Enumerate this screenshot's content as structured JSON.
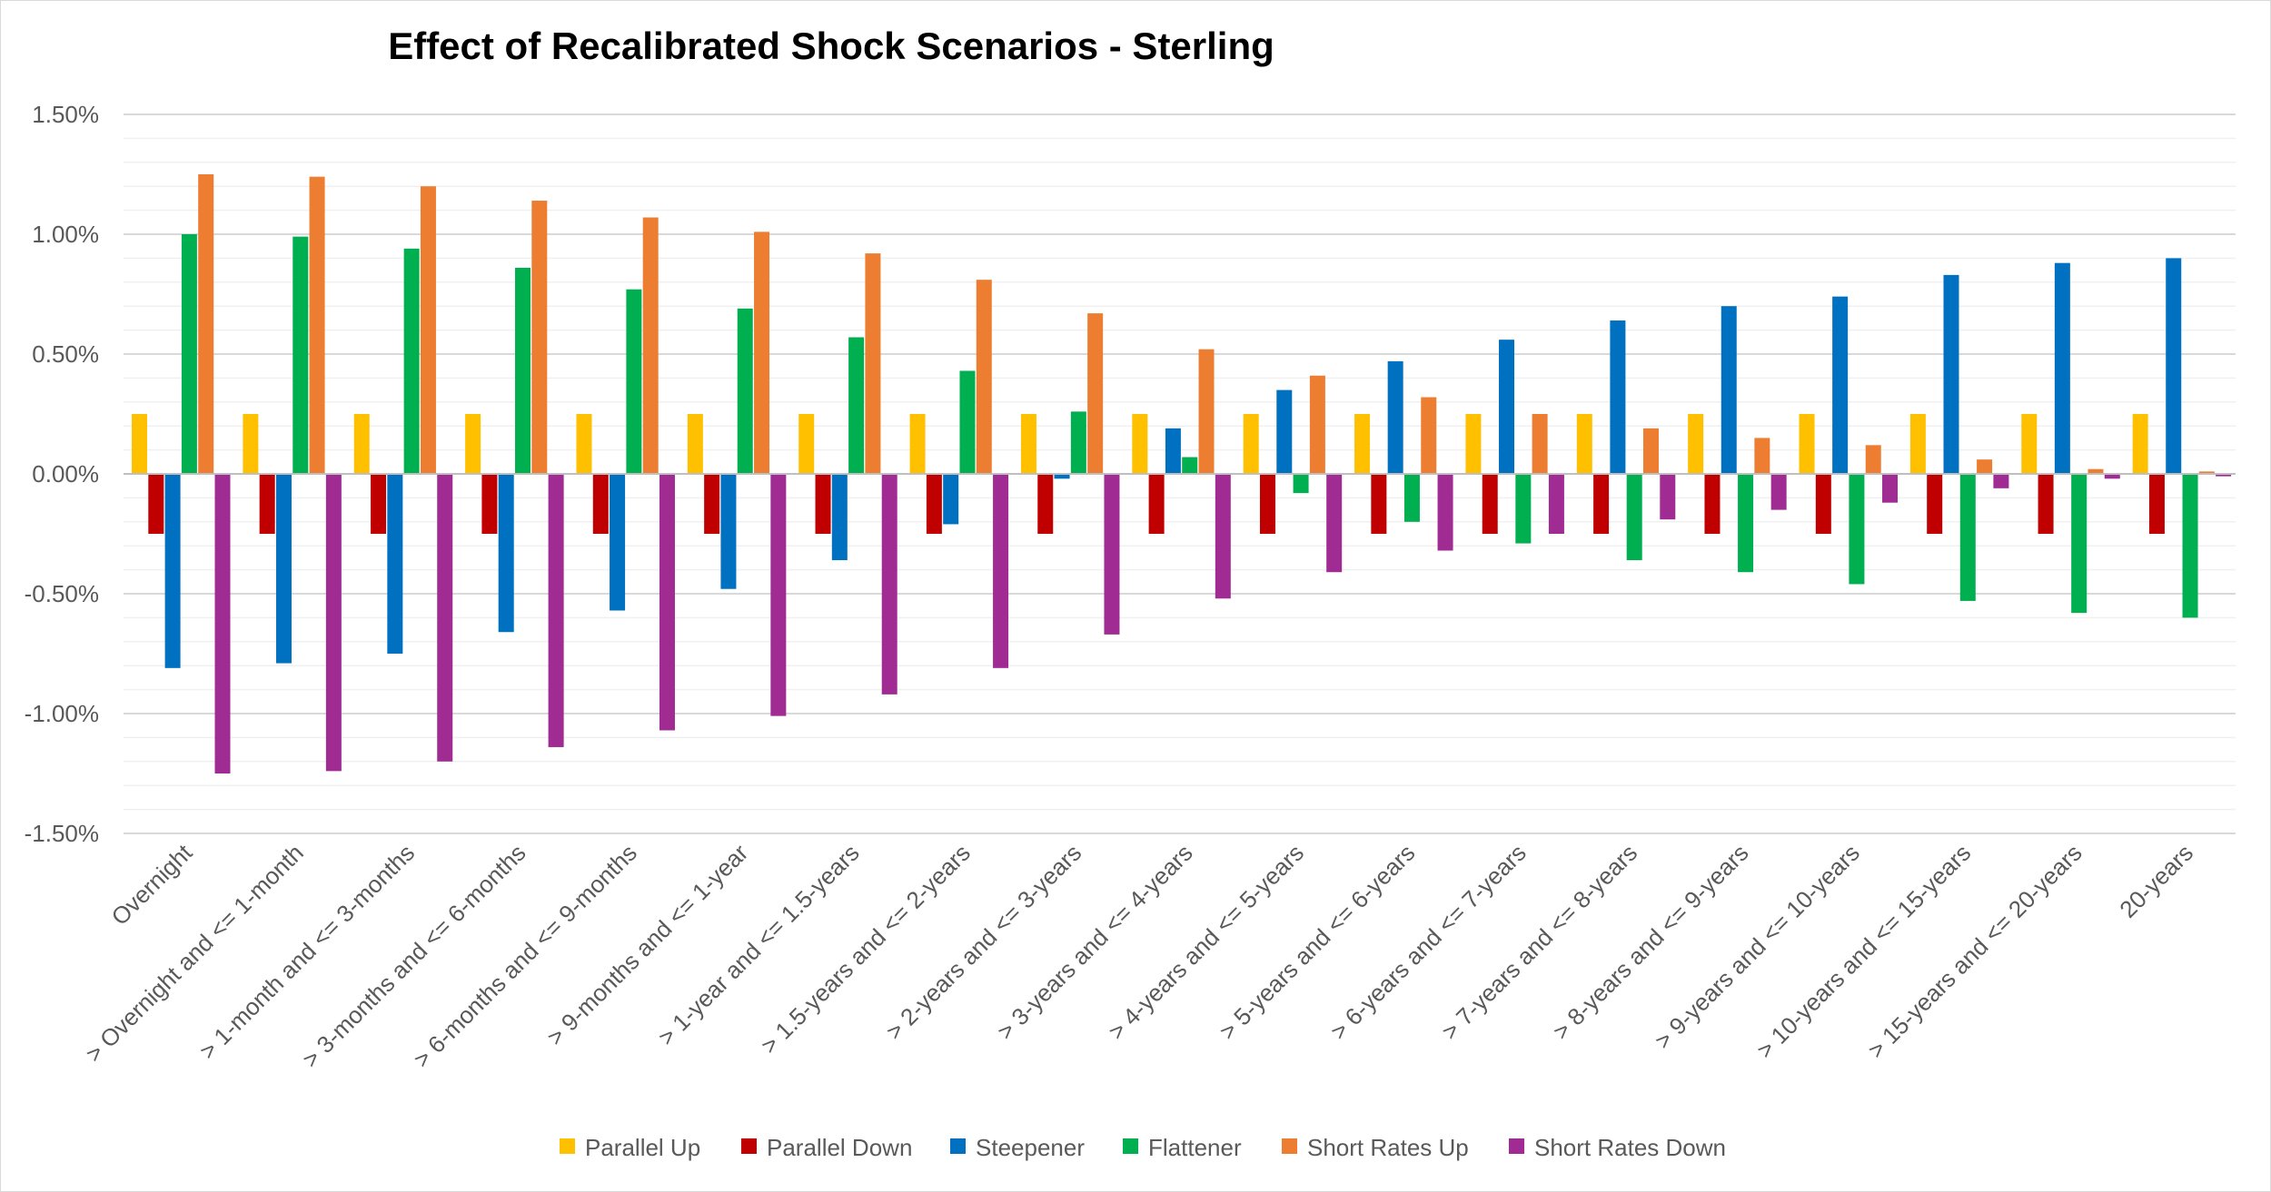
{
  "chart_data": {
    "type": "bar",
    "title": "Effect of Recalibrated Shock Scenarios - Sterling",
    "ylim": [
      -0.015,
      0.015
    ],
    "y_ticks": [
      "1.50%",
      "1.00%",
      "0.50%",
      "0.00%",
      "-0.50%",
      "-1.00%",
      "-1.50%"
    ],
    "y_tick_values": [
      0.015,
      0.01,
      0.005,
      0,
      -0.005,
      -0.01,
      -0.015
    ],
    "grid": true,
    "legend_position": "bottom",
    "categories": [
      "Overnight",
      "> Overnight and <= 1-month",
      "> 1-month and <= 3-months",
      "> 3-months and <= 6-months",
      "> 6-months and <= 9-months",
      "> 9-months and <= 1-year",
      "> 1-year and <= 1.5-years",
      "> 1.5-years and <= 2-years",
      "> 2-years and <= 3-years",
      "> 3-years and <= 4-years",
      "> 4-years and <= 5-years",
      "> 5-years and <= 6-years",
      "> 6-years and <= 7-years",
      "> 7-years and <= 8-years",
      "> 8-years and <= 9-years",
      "> 9-years and <= 10-years",
      "> 10-years and <= 15-years",
      "> 15-years and <= 20-years",
      "20-years"
    ],
    "series": [
      {
        "name": "Parallel Up",
        "color": "#FFC000",
        "values": [
          0.0025,
          0.0025,
          0.0025,
          0.0025,
          0.0025,
          0.0025,
          0.0025,
          0.0025,
          0.0025,
          0.0025,
          0.0025,
          0.0025,
          0.0025,
          0.0025,
          0.0025,
          0.0025,
          0.0025,
          0.0025,
          0.0025
        ]
      },
      {
        "name": "Parallel Down",
        "color": "#C00000",
        "values": [
          -0.0025,
          -0.0025,
          -0.0025,
          -0.0025,
          -0.0025,
          -0.0025,
          -0.0025,
          -0.0025,
          -0.0025,
          -0.0025,
          -0.0025,
          -0.0025,
          -0.0025,
          -0.0025,
          -0.0025,
          -0.0025,
          -0.0025,
          -0.0025,
          -0.0025
        ]
      },
      {
        "name": "Steepener",
        "color": "#0070C0",
        "values": [
          -0.0081,
          -0.0079,
          -0.0075,
          -0.0066,
          -0.0057,
          -0.0048,
          -0.0036,
          -0.0021,
          -0.0002,
          0.0019,
          0.0035,
          0.0047,
          0.0056,
          0.0064,
          0.007,
          0.0074,
          0.0083,
          0.0088,
          0.009
        ]
      },
      {
        "name": "Flattener",
        "color": "#00B050",
        "values": [
          0.01,
          0.0099,
          0.0094,
          0.0086,
          0.0077,
          0.0069,
          0.0057,
          0.0043,
          0.0026,
          0.0007,
          -0.0008,
          -0.002,
          -0.0029,
          -0.0036,
          -0.0041,
          -0.0046,
          -0.0053,
          -0.0058,
          -0.006
        ]
      },
      {
        "name": "Short Rates Up",
        "color": "#ED7D31",
        "values": [
          0.0125,
          0.0124,
          0.012,
          0.0114,
          0.0107,
          0.0101,
          0.0092,
          0.0081,
          0.0067,
          0.0052,
          0.0041,
          0.0032,
          0.0025,
          0.0019,
          0.0015,
          0.0012,
          0.0006,
          0.0002,
          0.0001
        ]
      },
      {
        "name": "Short Rates Down",
        "color": "#A02B93",
        "values": [
          -0.0125,
          -0.0124,
          -0.012,
          -0.0114,
          -0.0107,
          -0.0101,
          -0.0092,
          -0.0081,
          -0.0067,
          -0.0052,
          -0.0041,
          -0.0032,
          -0.0025,
          -0.0019,
          -0.0015,
          -0.0012,
          -0.0006,
          -0.0002,
          -0.0001
        ]
      }
    ]
  }
}
